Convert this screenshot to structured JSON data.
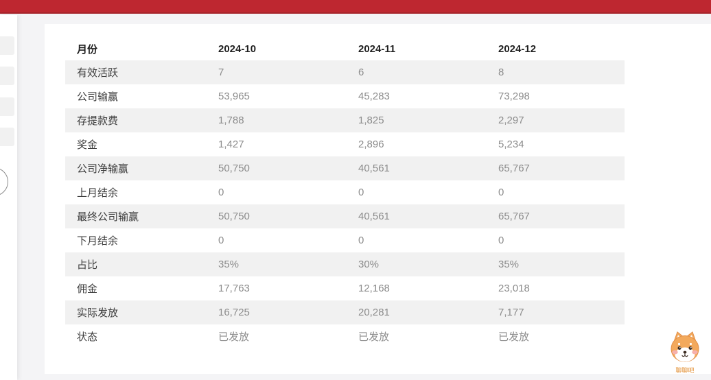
{
  "topbar": {
    "color": "#be2730",
    "edge_color": "#a5242b"
  },
  "sidebar": {
    "placeholder_count": 4
  },
  "table": {
    "columns": [
      "月份",
      "2024-10",
      "2024-11",
      "2024-12"
    ],
    "rows": [
      {
        "label": "有效活跃",
        "values": [
          "7",
          "6",
          "8"
        ]
      },
      {
        "label": "公司输赢",
        "values": [
          "53,965",
          "45,283",
          "73,298"
        ]
      },
      {
        "label": "存提款费",
        "values": [
          "1,788",
          "1,825",
          "2,297"
        ]
      },
      {
        "label": "奖金",
        "values": [
          "1,427",
          "2,896",
          "5,234"
        ]
      },
      {
        "label": "公司净输赢",
        "values": [
          "50,750",
          "40,561",
          "65,767"
        ]
      },
      {
        "label": "上月结余",
        "values": [
          "0",
          "0",
          "0"
        ]
      },
      {
        "label": "最终公司输赢",
        "values": [
          "50,750",
          "40,561",
          "65,767"
        ]
      },
      {
        "label": "下月结余",
        "values": [
          "0",
          "0",
          "0"
        ]
      },
      {
        "label": "占比",
        "values": [
          "35%",
          "30%",
          "35%"
        ]
      },
      {
        "label": "佣金",
        "values": [
          "17,763",
          "12,168",
          "23,018"
        ]
      },
      {
        "label": "实际发放",
        "values": [
          "16,725",
          "20,281",
          "7,177"
        ]
      },
      {
        "label": "状态",
        "values": [
          "已发放",
          "已发放",
          "已发放"
        ]
      }
    ],
    "stripe_color": "#f1f1f1",
    "value_color": "#8c8c8c"
  },
  "mascot": {
    "label": "聊聊吧",
    "body_color": "#f3a95c",
    "blush_color": "#f6b0ac"
  }
}
